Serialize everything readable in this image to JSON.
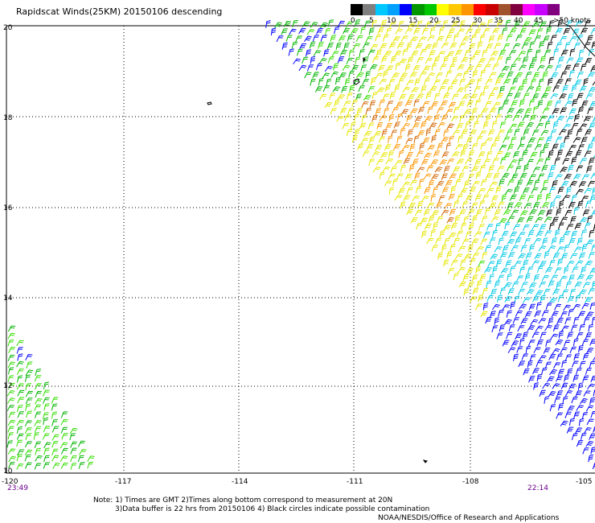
{
  "header": {
    "title": "Rapidscat Winds(25KM) 20150106 descending"
  },
  "color_scale": {
    "colors": [
      "#000000",
      "#7f7f7f",
      "#00c8ff",
      "#00a0ff",
      "#0000ff",
      "#009600",
      "#00c800",
      "#ffff00",
      "#ffc800",
      "#ff9600",
      "#ff0000",
      "#c80000",
      "#a0522d",
      "#800040",
      "#ff00ff",
      "#c800ff",
      "#800080"
    ],
    "labels": [
      "0",
      "5",
      "10",
      "15",
      "20",
      "25",
      "30",
      "35",
      "40",
      "45",
      ">50 knots"
    ]
  },
  "axes": {
    "lat_labels": [
      "20",
      "18",
      "16",
      "14",
      "12",
      "10"
    ],
    "lon_labels": [
      "-120",
      "-117",
      "-114",
      "-111",
      "-108",
      "-105"
    ]
  },
  "times": {
    "left": "23:49",
    "right": "22:14"
  },
  "footer": {
    "note_line1": "Note: 1) Times are GMT 2)Times along bottom correspond to measurement at 20N",
    "note_line2": "3)Data buffer is 22 hrs from 20150106 4) Black circles indicate possible contamination",
    "credit": "NOAA/NESDIS/Office of Research and Applications"
  },
  "wind_colors": {
    "green": "#00b400",
    "bright_green": "#33dd00",
    "yellow": "#e6e600",
    "orange": "#ff9600",
    "dark_orange": "#d26400",
    "blue": "#0000ff",
    "cyan": "#00c8e6",
    "black": "#000000"
  }
}
